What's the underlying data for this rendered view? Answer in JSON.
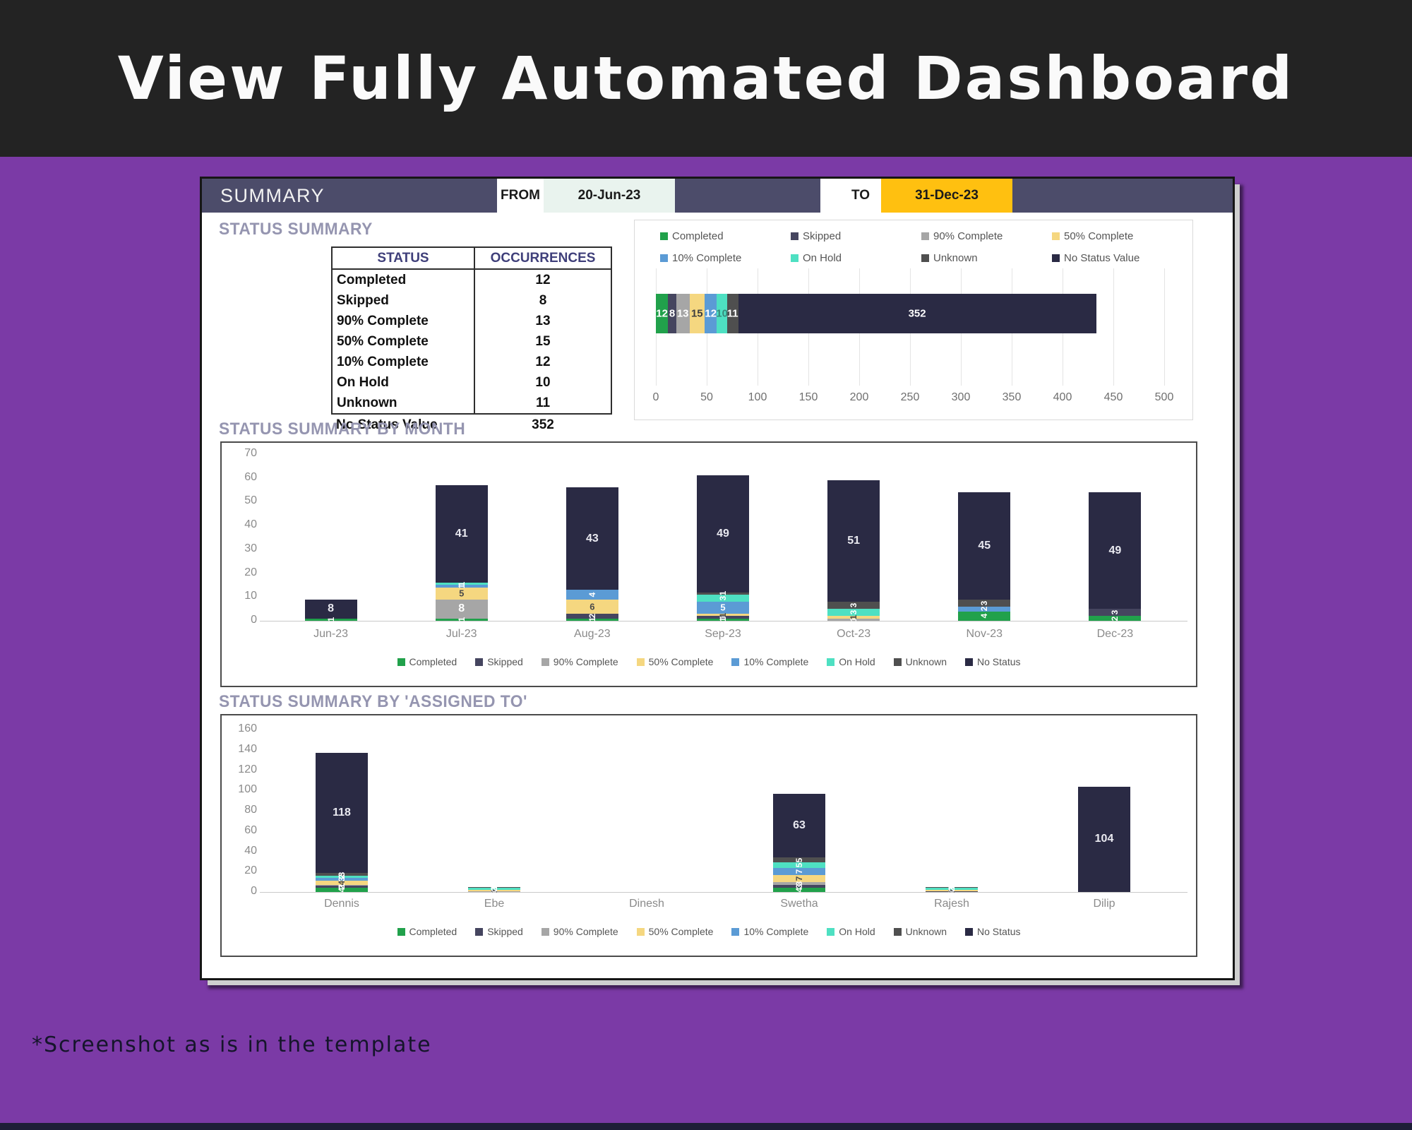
{
  "hero": {
    "title": "View Fully Automated Dashboard"
  },
  "footer": {
    "note": "*Screenshot as is in the template"
  },
  "dashboard": {
    "colors": {
      "hero_bg": "#232323",
      "page_bg": "#7B3AA6",
      "band_bg": "#4C4C6A",
      "from_bg": "#E9F3EE",
      "to_bg": "#FFC010",
      "accent_heading": "#9595B0"
    },
    "header": {
      "title": "SUMMARY",
      "from_label": "FROM",
      "from_value": "20-Jun-23",
      "to_label": "TO",
      "to_value": "31-Dec-23"
    },
    "sections": {
      "status_summary": "STATUS SUMMARY",
      "by_month": "STATUS SUMMARY BY MONTH",
      "by_assigned": "STATUS SUMMARY BY 'ASSIGNED TO'"
    },
    "status_table": {
      "columns": [
        "STATUS",
        "OCCURRENCES"
      ],
      "rows": [
        [
          "Completed",
          "12"
        ],
        [
          "Skipped",
          "8"
        ],
        [
          "90% Complete",
          "13"
        ],
        [
          "50% Complete",
          "15"
        ],
        [
          "10% Complete",
          "12"
        ],
        [
          "On Hold",
          "10"
        ],
        [
          "Unknown",
          "11"
        ]
      ],
      "footer_row": [
        "No Status Value",
        "352"
      ]
    }
  },
  "chart_data": [
    {
      "id": "status-occurrences",
      "type": "bar",
      "orientation": "horizontal",
      "stacked": true,
      "title": "",
      "legend_position": "top",
      "legend": [
        {
          "label": "Completed",
          "color": "#21A14B"
        },
        {
          "label": "Skipped",
          "color": "#45455F"
        },
        {
          "label": "90% Complete",
          "color": "#A6A6A6"
        },
        {
          "label": "50% Complete",
          "color": "#F5D780"
        },
        {
          "label": "10% Complete",
          "color": "#5B9BD5"
        },
        {
          "label": "On Hold",
          "color": "#4EE0C2"
        },
        {
          "label": "Unknown",
          "color": "#4F4F4F"
        },
        {
          "label": "No Status Value",
          "color": "#2A2A44"
        }
      ],
      "segments": [
        {
          "label": "Completed",
          "value": 12,
          "color": "#21A14B",
          "label_color": "#FFFFFF"
        },
        {
          "label": "Skipped",
          "value": 8,
          "color": "#45455F",
          "label_color": "#FFFFFF"
        },
        {
          "label": "90% Complete",
          "value": 13,
          "color": "#A6A6A6",
          "label_color": "#FFFFFF"
        },
        {
          "label": "50% Complete",
          "value": 15,
          "color": "#F5D780",
          "label_color": "#3F3F3F"
        },
        {
          "label": "10% Complete",
          "value": 12,
          "color": "#5B9BD5",
          "label_color": "#FFFFFF"
        },
        {
          "label": "On Hold",
          "value": 10,
          "color": "#4EE0C2",
          "label_color": "#37897A"
        },
        {
          "label": "Unknown",
          "value": 11,
          "color": "#4F4F4F",
          "label_color": "#FFFFFF"
        },
        {
          "label": "No Status Value",
          "value": 352,
          "color": "#2A2A44",
          "label_color": "#FFFFFF"
        }
      ],
      "xlim": [
        0,
        500
      ],
      "xticks": [
        0,
        50,
        100,
        150,
        200,
        250,
        300,
        350,
        400,
        450,
        500
      ]
    },
    {
      "id": "status-by-month",
      "type": "bar",
      "stacked": true,
      "title": "STATUS SUMMARY BY MONTH",
      "categories": [
        "Jun-23",
        "Jul-23",
        "Aug-23",
        "Sep-23",
        "Oct-23",
        "Nov-23",
        "Dec-23"
      ],
      "series": [
        {
          "name": "Completed",
          "color": "#21A14B",
          "label_color": "#FFFFFF",
          "values": [
            1,
            1,
            1,
            1,
            0,
            4,
            2
          ]
        },
        {
          "name": "Skipped",
          "color": "#45455F",
          "label_color": "#FFFFFF",
          "values": [
            0,
            0,
            2,
            1,
            0,
            0,
            3
          ]
        },
        {
          "name": "90% Complete",
          "color": "#A6A6A6",
          "label_color": "#FFFFFF",
          "values": [
            0,
            8,
            0,
            0,
            1,
            0,
            0
          ]
        },
        {
          "name": "50% Complete",
          "color": "#F5D780",
          "label_color": "#4A4A4A",
          "values": [
            0,
            5,
            6,
            1,
            1,
            0,
            0
          ]
        },
        {
          "name": "10% Complete",
          "color": "#5B9BD5",
          "label_color": "#FFFFFF",
          "values": [
            0,
            1,
            4,
            5,
            0,
            2,
            0
          ]
        },
        {
          "name": "On Hold",
          "color": "#4EE0C2",
          "label_color": "#FFFFFF",
          "values": [
            0,
            1,
            0,
            3,
            3,
            0,
            0
          ]
        },
        {
          "name": "Unknown",
          "color": "#4F4F4F",
          "label_color": "#FFFFFF",
          "values": [
            0,
            0,
            0,
            1,
            3,
            3,
            0
          ]
        },
        {
          "name": "No Status",
          "color": "#2A2A44",
          "label_color": "#E9E9F0",
          "values": [
            8,
            41,
            43,
            49,
            51,
            45,
            49
          ]
        }
      ],
      "ylim": [
        0,
        70
      ],
      "yticks": [
        0,
        10,
        20,
        30,
        40,
        50,
        60,
        70
      ],
      "legend_position": "bottom"
    },
    {
      "id": "status-by-assigned",
      "type": "bar",
      "stacked": true,
      "title": "STATUS SUMMARY BY 'ASSIGNED TO'",
      "categories": [
        "Dennis",
        "Ebe",
        "Dinesh",
        "Swetha",
        "Rajesh",
        "Dilip"
      ],
      "series": [
        {
          "name": "Completed",
          "color": "#21A14B",
          "label_color": "#FFFFFF",
          "values": [
            4,
            0,
            0,
            4,
            0,
            0
          ]
        },
        {
          "name": "Skipped",
          "color": "#45455F",
          "label_color": "#FFFFFF",
          "values": [
            2,
            0,
            0,
            3,
            1,
            0
          ]
        },
        {
          "name": "90% Complete",
          "color": "#A6A6A6",
          "label_color": "#FFFFFF",
          "values": [
            1,
            1,
            0,
            3,
            0,
            0
          ]
        },
        {
          "name": "50% Complete",
          "color": "#F5D780",
          "label_color": "#4A4A4A",
          "values": [
            4,
            1,
            0,
            7,
            1,
            0
          ]
        },
        {
          "name": "10% Complete",
          "color": "#5B9BD5",
          "label_color": "#FFFFFF",
          "values": [
            3,
            0,
            0,
            7,
            0,
            0
          ]
        },
        {
          "name": "On Hold",
          "color": "#4EE0C2",
          "label_color": "#FFFFFF",
          "values": [
            2,
            2,
            0,
            5,
            2,
            0
          ]
        },
        {
          "name": "Unknown",
          "color": "#4F4F4F",
          "label_color": "#FFFFFF",
          "values": [
            3,
            1,
            0,
            5,
            1,
            0
          ]
        },
        {
          "name": "No Status",
          "color": "#2A2A44",
          "label_color": "#E9E9F0",
          "values": [
            118,
            0,
            0,
            63,
            0,
            104
          ]
        }
      ],
      "ylim": [
        0,
        160
      ],
      "yticks": [
        0,
        20,
        40,
        60,
        80,
        100,
        120,
        140,
        160
      ],
      "legend_position": "bottom"
    }
  ]
}
